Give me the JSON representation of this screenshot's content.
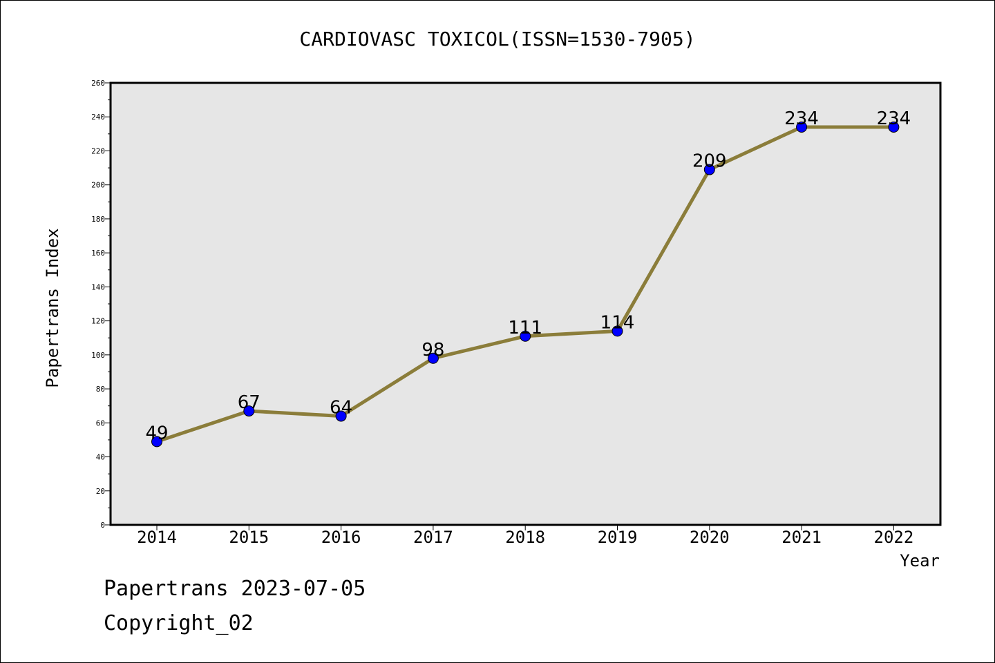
{
  "chart_data": {
    "type": "line",
    "title": "CARDIOVASC TOXICOL(ISSN=1530-7905)",
    "xlabel": "Year",
    "ylabel": "Papertrans Index",
    "categories": [
      "2014",
      "2015",
      "2016",
      "2017",
      "2018",
      "2019",
      "2020",
      "2021",
      "2022"
    ],
    "series": [
      {
        "values": [
          49,
          67,
          64,
          98,
          111,
          114,
          209,
          234,
          234
        ]
      }
    ],
    "data_labels": [
      "49",
      "67",
      "64",
      "98",
      "111",
      "114",
      "209",
      "234",
      "234"
    ],
    "ylim": [
      0,
      260
    ],
    "y_ticks": [
      0,
      20,
      40,
      60,
      80,
      100,
      120,
      140,
      160,
      180,
      200,
      220,
      240,
      260
    ],
    "grid": false,
    "line_color": "#8b7d3a",
    "marker_color": "#0000ff",
    "plot_background": "#e6e6e6"
  },
  "footer": {
    "line1": "Papertrans 2023-07-05",
    "line2": "Copyright_02"
  }
}
